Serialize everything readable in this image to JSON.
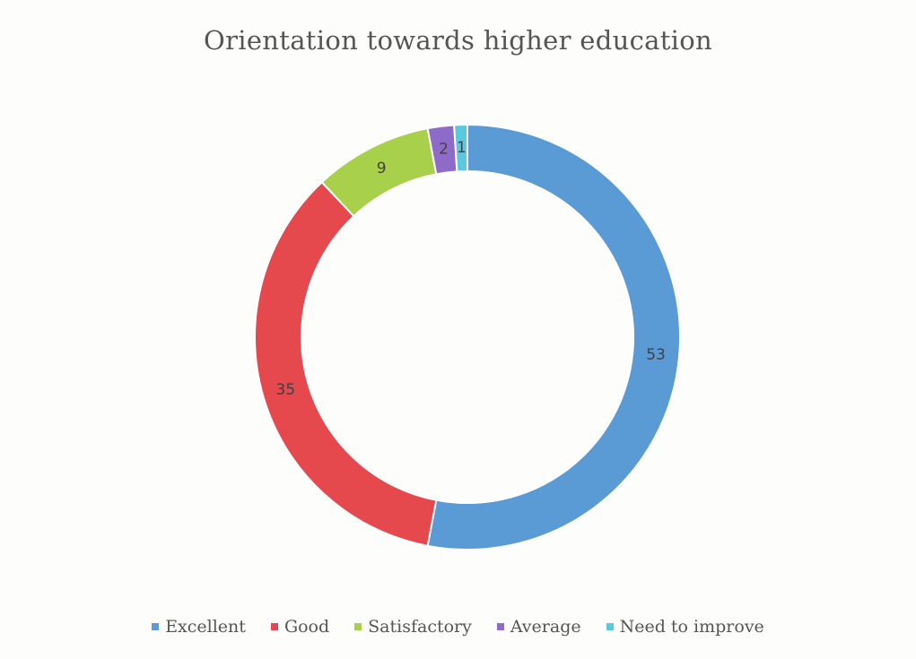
{
  "chart_data": {
    "type": "pie",
    "variant": "donut",
    "title": "Orientation towards higher education",
    "categories": [
      "Excellent",
      "Good",
      "Satisfactory",
      "Average",
      "Need to improve"
    ],
    "values": [
      53,
      35,
      9,
      2,
      1
    ],
    "colors": [
      "#5b9bd5",
      "#e5484d",
      "#a9d04b",
      "#8e6bc9",
      "#5bc8e0"
    ],
    "data_labels": [
      "53",
      "35",
      "9",
      "2",
      "1"
    ],
    "legend_position": "bottom"
  }
}
